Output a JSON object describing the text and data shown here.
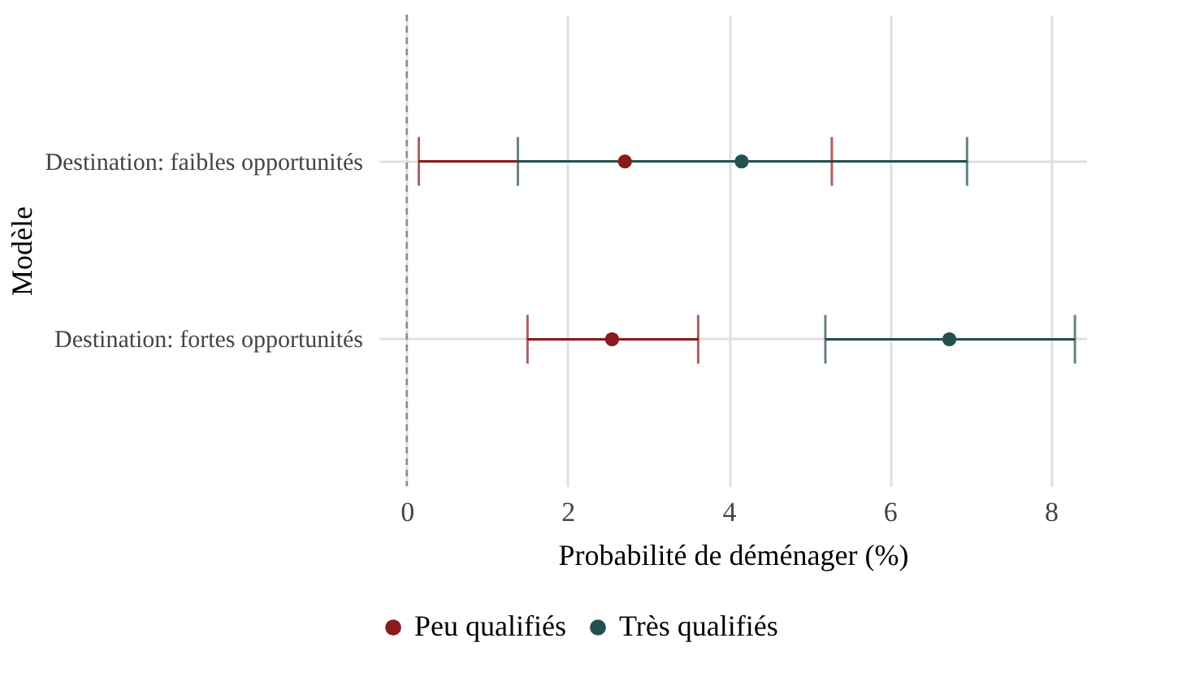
{
  "chart_data": {
    "type": "scatter",
    "orientation": "horizontal",
    "xlabel": "Probabilité de déménager (%)",
    "ylabel": "Modèle",
    "categories": [
      "Destination: faibles opportunités",
      "Destination: fortes opportunités"
    ],
    "series": [
      {
        "name": "Peu qualifiés",
        "color": "#8b1a1a",
        "values": [
          2.71,
          2.55
        ],
        "errors": [
          [
            0.15,
            5.28
          ],
          [
            1.5,
            3.62
          ]
        ]
      },
      {
        "name": "Très qualifiés",
        "color": "#234f4f",
        "values": [
          4.16,
          6.74
        ],
        "errors": [
          [
            1.38,
            6.96
          ],
          [
            5.2,
            8.3
          ]
        ]
      }
    ],
    "xlim": [
      -0.35,
      8.45
    ],
    "xticks": [
      0,
      2,
      4,
      6,
      8
    ],
    "grid": true,
    "legend": "bottom",
    "marker": "circle",
    "ref_lines": [
      {
        "axis": "x",
        "value": 0,
        "color": "#888888",
        "line_style": "dashed"
      }
    ]
  }
}
